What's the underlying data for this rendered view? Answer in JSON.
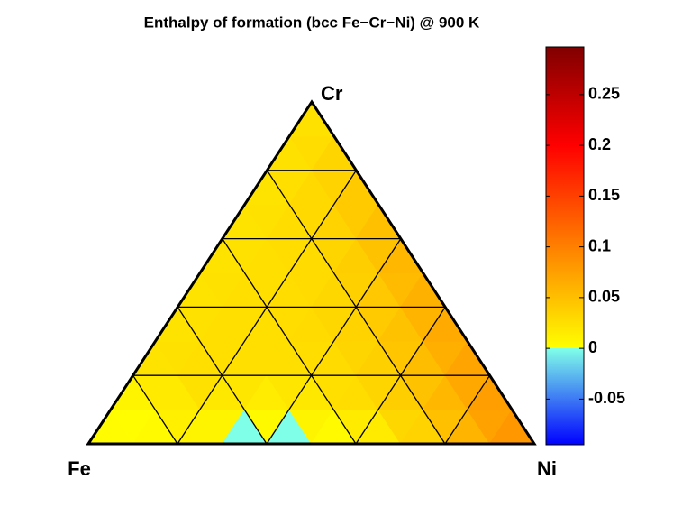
{
  "chart_data": {
    "type": "ternary",
    "title": "Enthalpy of formation (bcc Fe−Cr−Ni) @ 900 K",
    "components": [
      "Fe",
      "Ni",
      "Cr"
    ],
    "gridlines": [
      0.2,
      0.4,
      0.6,
      0.8
    ],
    "divisions": 10,
    "values": [
      [
        0.01,
        -0.003,
        0.01,
        -0.005,
        -0.005,
        -0.005,
        -0.003,
        0.02,
        0.04,
        0.07,
        0.09
      ],
      [
        0.002,
        0.005,
        0.02,
        0.01,
        0.01,
        0.02,
        0.03,
        0.045,
        0.065,
        0.085
      ],
      [
        0.02,
        0.025,
        0.025,
        0.025,
        0.025,
        0.03,
        0.04,
        0.06,
        0.08
      ],
      [
        0.02,
        0.025,
        0.025,
        0.025,
        0.03,
        0.04,
        0.055,
        0.075
      ],
      [
        0.02,
        0.025,
        0.025,
        0.03,
        0.035,
        0.05,
        0.07
      ],
      [
        0.02,
        0.025,
        0.025,
        0.03,
        0.045,
        0.065
      ],
      [
        0.02,
        0.025,
        0.03,
        0.04,
        0.06
      ],
      [
        0.02,
        0.025,
        0.035,
        0.05
      ],
      [
        0.02,
        0.03,
        0.04
      ],
      [
        0.02,
        0.03
      ],
      [
        0.02
      ]
    ],
    "clim": [
      -0.095,
      0.297
    ],
    "cticks": [
      -0.05,
      0,
      0.05,
      0.1,
      0.15,
      0.2,
      0.25
    ],
    "colormap": [
      {
        "value": -0.095,
        "color": "#0000ff"
      },
      {
        "value": 0,
        "color": "#80ffe8"
      },
      {
        "value": 0,
        "color": "#ffff00"
      },
      {
        "value": 0.1,
        "color": "#ff8000"
      },
      {
        "value": 0.2,
        "color": "#ff0000"
      },
      {
        "value": 0.297,
        "color": "#800000"
      }
    ]
  }
}
